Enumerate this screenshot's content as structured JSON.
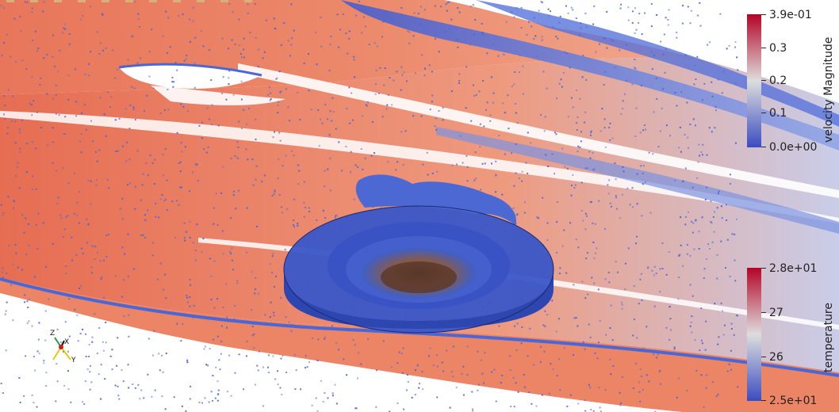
{
  "render_view": {
    "background": "#ffffff",
    "streamline_colors": {
      "high": "#e4613f",
      "mid": "#f2b79a",
      "low": "#4a67d6",
      "white": "#ffffff"
    },
    "isosurface_color": "#3a56c8"
  },
  "colorbars": {
    "velocity": {
      "title": "velocity Magnitude",
      "ticks": [
        "3.9e-01",
        "0.3",
        "0.2",
        "0.1",
        "0.0e+00"
      ],
      "min": 0.0,
      "max": 0.39,
      "colors": {
        "high": "#b40426",
        "mid": "#dddddd",
        "low": "#3b4cc0"
      }
    },
    "temperature": {
      "title": "temperature",
      "ticks": [
        "2.8e+01",
        "27",
        "26",
        "2.5e+01"
      ],
      "min": 25,
      "max": 28,
      "colors": {
        "high": "#b40426",
        "mid": "#dddddd",
        "low": "#3b4cc0"
      }
    }
  },
  "orientation_axes": {
    "labels": {
      "x": "X",
      "y": "Y",
      "z": "Z"
    },
    "colors": {
      "x": "#d11a1a",
      "y": "#e6c70f",
      "z": "#1f9e3a"
    }
  }
}
